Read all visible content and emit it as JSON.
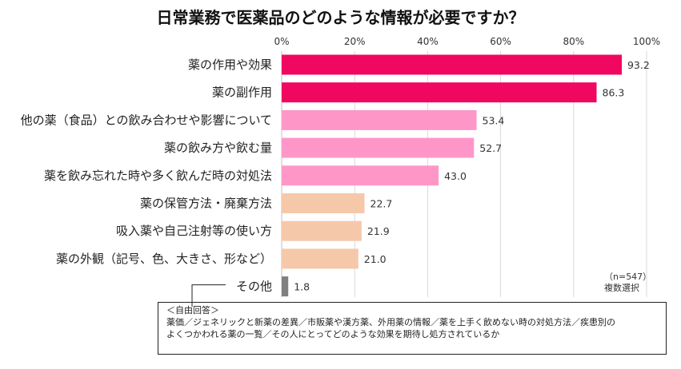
{
  "title": "日常業務で医薬品のどのような情報が必要ですか？",
  "chart_data": {
    "type": "bar",
    "orientation": "horizontal",
    "title": "日常業務で医薬品のどのような情報が必要ですか？",
    "categories": [
      "薬の作用や効果",
      "薬の副作用",
      "他の薬（食品）との飲み合わせや影響について",
      "薬の飲み方や飲む量",
      "薬を飲み忘れた時や多く飲んだ時の対処法",
      "薬の保管方法・廃棄方法",
      "吸入薬や自己注射等の使い方",
      "薬の外観（記号、色、大きさ、形など）",
      "その他"
    ],
    "values": [
      93.2,
      86.3,
      53.4,
      52.7,
      43.0,
      22.7,
      21.9,
      21.0,
      1.8
    ],
    "value_labels": [
      "93.2",
      "86.3",
      "53.4",
      "52.7",
      "43.0",
      "22.7",
      "21.9",
      "21.0",
      "1.8"
    ],
    "bar_colors": [
      "#f0075f",
      "#f0075f",
      "#ff96c8",
      "#ff96c8",
      "#ff96c8",
      "#f6c8aa",
      "#f6c8aa",
      "#f6c8aa",
      "#808080"
    ],
    "xlim": [
      0,
      100
    ],
    "xticks": [
      "0%",
      "20%",
      "40%",
      "60%",
      "80%",
      "100%"
    ],
    "xlabel": "",
    "ylabel": "",
    "grid": true,
    "sample_note": "（n=547）",
    "method_note": "複数選択"
  },
  "free_answers": {
    "heading": "＜自由回答＞",
    "line1": "薬価／ジェネリックと新薬の差異／市販薬や漢方薬、外用薬の情報／薬を上手く飲めない時の対処方法／疾患別の",
    "line2": "よくつかわれる薬の一覧／その人にとってどのような効果を期待し処方されているか"
  }
}
